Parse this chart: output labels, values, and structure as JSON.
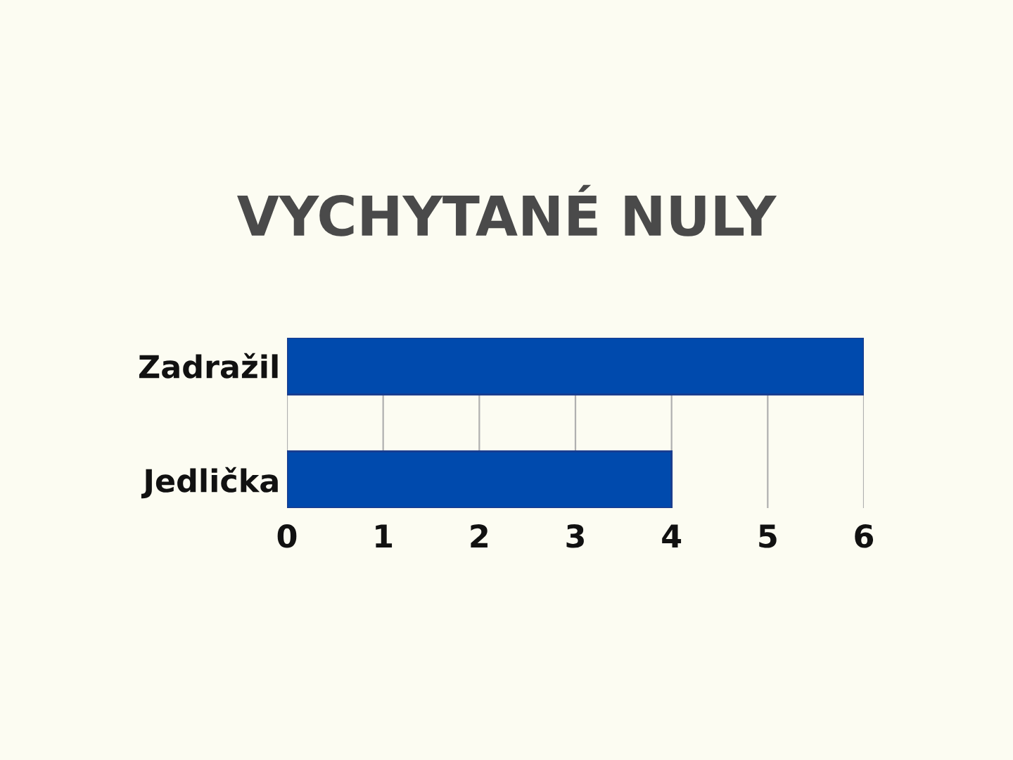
{
  "chart_data": {
    "type": "bar",
    "orientation": "horizontal",
    "title": "VYCHYTANÉ NULY",
    "categories": [
      "Zadražil",
      "Jedlička"
    ],
    "values": [
      6,
      4
    ],
    "color": "#004aad",
    "xlim": [
      0,
      6
    ],
    "xticks": [
      0,
      1,
      2,
      3,
      4,
      5,
      6
    ],
    "grid": "x",
    "legend": false
  }
}
